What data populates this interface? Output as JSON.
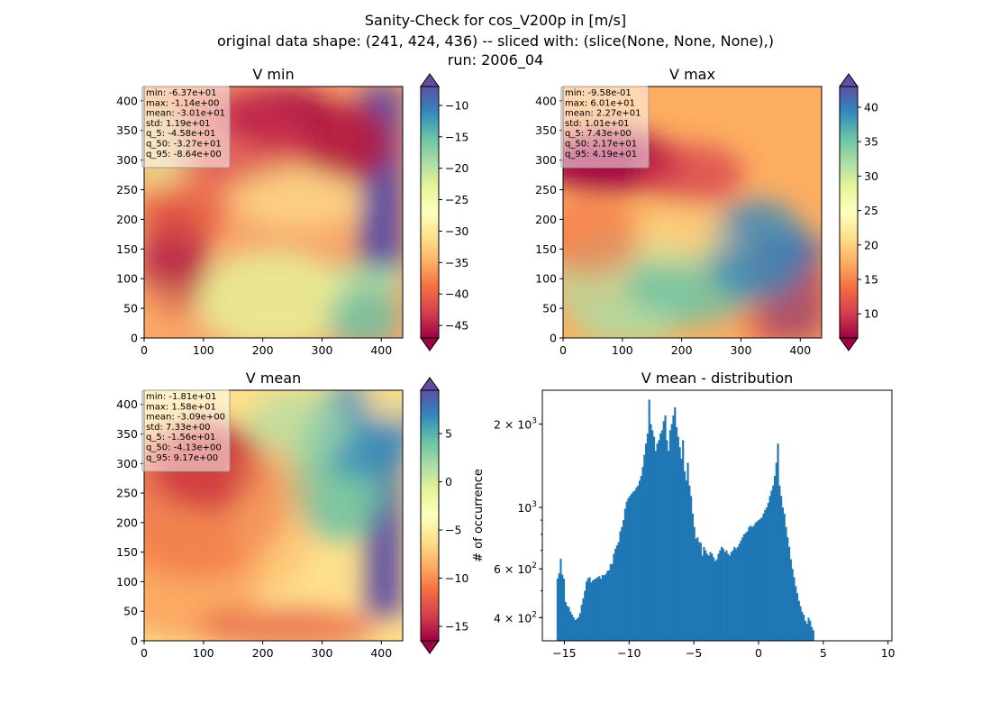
{
  "suptitle": {
    "line1": "Sanity-Check for cos_V200p in [m/s]",
    "line2": "original data shape: (241, 424, 436) -- sliced with: (slice(None, None, None),)",
    "line3": "run: 2006_04"
  },
  "chart_data": [
    {
      "type": "heatmap",
      "title": "V min",
      "colormap": "Spectral",
      "xlim": [
        0,
        436
      ],
      "ylim": [
        0,
        424
      ],
      "xticks": [
        0,
        100,
        200,
        300,
        400
      ],
      "yticks": [
        0,
        50,
        100,
        150,
        200,
        250,
        300,
        350,
        400
      ],
      "colorbar": {
        "range": [
          -47,
          -7
        ],
        "ticks": [
          -45,
          -40,
          -35,
          -30,
          -25,
          -20,
          -15,
          -10
        ],
        "extend": "both"
      },
      "stats": [
        "min: -6.37e+01",
        "max: -1.14e+00",
        "mean: -3.01e+01",
        "std: 1.19e+01",
        "q_5: -4.58e+01",
        "q_50: -3.27e+01",
        "q_95: -8.64e+00"
      ]
    },
    {
      "type": "heatmap",
      "title": "V max",
      "colormap": "Spectral",
      "xlim": [
        0,
        436
      ],
      "ylim": [
        0,
        424
      ],
      "xticks": [
        0,
        100,
        200,
        300,
        400
      ],
      "yticks": [
        0,
        50,
        100,
        150,
        200,
        250,
        300,
        350,
        400
      ],
      "colorbar": {
        "range": [
          6.5,
          43
        ],
        "ticks": [
          10,
          15,
          20,
          25,
          30,
          35,
          40
        ],
        "extend": "both"
      },
      "stats": [
        "min: -9.58e-01",
        "max: 6.01e+01",
        "mean: 2.27e+01",
        "std: 1.01e+01",
        "q_5: 7.43e+00",
        "q_50: 2.17e+01",
        "q_95: 4.19e+01"
      ]
    },
    {
      "type": "heatmap",
      "title": "V mean",
      "colormap": "Spectral",
      "xlim": [
        0,
        436
      ],
      "ylim": [
        0,
        424
      ],
      "xticks": [
        0,
        100,
        200,
        300,
        400
      ],
      "yticks": [
        0,
        50,
        100,
        150,
        200,
        250,
        300,
        350,
        400
      ],
      "colorbar": {
        "range": [
          -16.5,
          9.5
        ],
        "ticks": [
          -15,
          -10,
          -5,
          0,
          5
        ],
        "extend": "both"
      },
      "stats": [
        "min: -1.81e+01",
        "max: 1.58e+01",
        "mean: -3.09e+00",
        "std: 7.33e+00",
        "q_5: -1.56e+01",
        "q_50: -4.13e+00",
        "q_95: 9.17e+00"
      ]
    },
    {
      "type": "bar",
      "title": "V mean - distribution",
      "ylabel": "# of occurrence",
      "xlabel": "",
      "yscale": "log",
      "color": "#1f77b4",
      "xlim": [
        -16.7,
        10.3
      ],
      "ylim": [
        330,
        2650
      ],
      "xticks": [
        -15,
        -10,
        -5,
        0,
        5,
        10
      ],
      "yticks_major": [
        {
          "value": 400,
          "base": "4",
          "exp": "2"
        },
        {
          "value": 600,
          "base": "6",
          "exp": "2"
        },
        {
          "value": 1000,
          "base": "",
          "exp": "3"
        },
        {
          "value": 2000,
          "base": "2",
          "exp": "3"
        }
      ],
      "bin_start": -15.6,
      "bin_width": 0.1243,
      "counts": [
        553,
        578,
        652,
        572,
        553,
        456,
        441,
        437,
        421,
        411,
        401,
        392,
        396,
        401,
        415,
        445,
        470,
        500,
        540,
        555,
        560,
        536,
        546,
        550,
        555,
        560,
        565,
        553,
        570,
        569,
        575,
        590,
        593,
        625,
        625,
        680,
        710,
        730,
        750,
        820,
        850,
        900,
        990,
        1050,
        1080,
        1100,
        1120,
        1140,
        1150,
        1180,
        1200,
        1250,
        1300,
        1400,
        1550,
        1700,
        1850,
        2450,
        2000,
        1900,
        1800,
        1600,
        1700,
        1750,
        1850,
        1900,
        2050,
        2150,
        1750,
        1600,
        1900,
        2000,
        2150,
        2300,
        1950,
        1800,
        1650,
        1500,
        1750,
        1350,
        1250,
        1450,
        1200,
        1100,
        950,
        850,
        770,
        780,
        750,
        745,
        670,
        720,
        700,
        680,
        670,
        690,
        680,
        660,
        640,
        650,
        680,
        700,
        720,
        710,
        690,
        700,
        680,
        670,
        690,
        700,
        720,
        710,
        720,
        740,
        760,
        780,
        800,
        810,
        820,
        850,
        860,
        850,
        860,
        880,
        890,
        900,
        910,
        920,
        950,
        980,
        1000,
        1040,
        1100,
        1150,
        1200,
        1300,
        1450,
        1700,
        1200,
        1100,
        1000,
        950,
        850,
        780,
        720,
        650,
        600,
        560,
        520,
        490,
        460,
        440,
        420,
        410,
        390,
        380,
        400,
        390,
        370,
        360
      ]
    }
  ]
}
